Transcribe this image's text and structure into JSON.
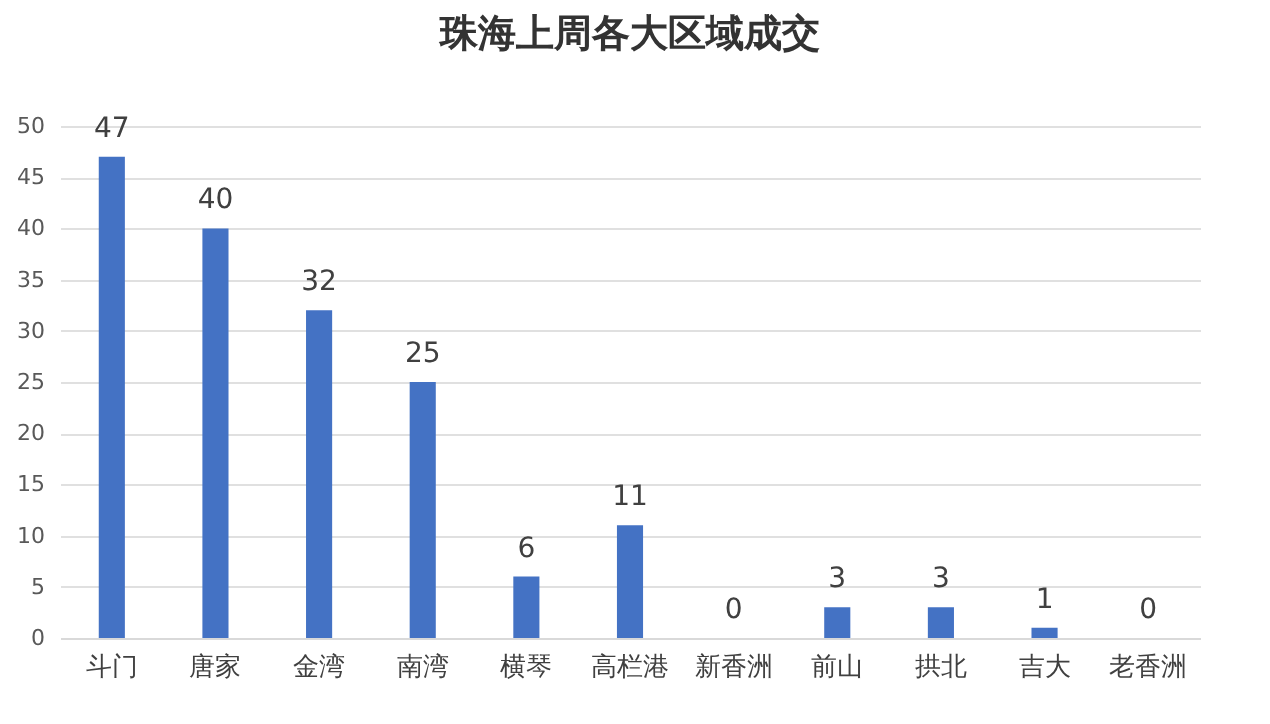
{
  "chart_data": {
    "type": "bar",
    "title": "珠海上周各大区域成交",
    "categories": [
      "斗门",
      "唐家",
      "金湾",
      "南湾",
      "横琴",
      "高栏港",
      "新香洲",
      "前山",
      "拱北",
      "吉大",
      "老香洲"
    ],
    "values": [
      47,
      40,
      32,
      25,
      6,
      11,
      0,
      3,
      3,
      1,
      0
    ],
    "color": "#4472c4",
    "ylim": [
      0,
      50
    ],
    "yticks": [
      0,
      5,
      10,
      15,
      20,
      25,
      30,
      35,
      40,
      45,
      50
    ],
    "grid": "y",
    "data_labels": true
  }
}
